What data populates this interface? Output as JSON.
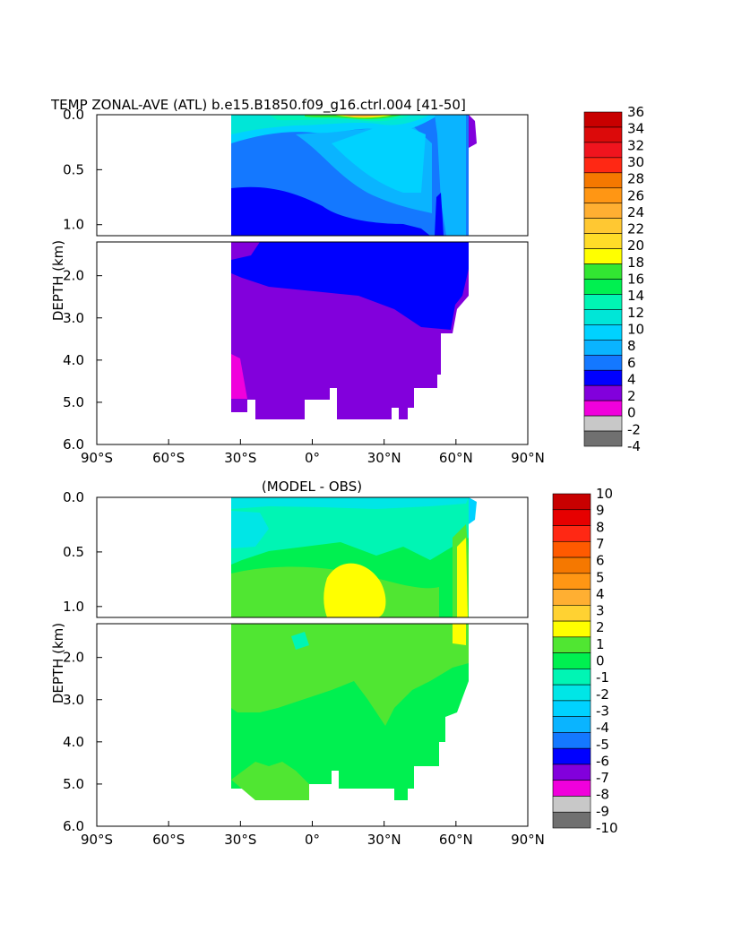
{
  "chart_data": [
    {
      "type": "heatmap",
      "title": "TEMP ZONAL-AVE (ATL) b.e15.B1850.f09_g16.ctrl.004 [41-50]",
      "ylabel": "DEPTH (km)",
      "xlabel": "",
      "x_ticks": [
        "90°S",
        "60°S",
        "30°S",
        "0°",
        "30°N",
        "60°N",
        "90°N"
      ],
      "y_ticks_upper": [
        "0.0",
        "0.5",
        "1.0"
      ],
      "y_ticks_lower": [
        "2.0",
        "3.0",
        "4.0",
        "5.0",
        "6.0"
      ],
      "xlim": [
        -90,
        90
      ],
      "ylim_upper_km": [
        0.0,
        1.1
      ],
      "ylim_lower_km": [
        1.2,
        6.0
      ],
      "colorbar_labels": [
        "36",
        "34",
        "32",
        "30",
        "28",
        "26",
        "24",
        "22",
        "20",
        "18",
        "16",
        "14",
        "12",
        "10",
        "8",
        "6",
        "4",
        "2",
        "0",
        "-2",
        "-4"
      ],
      "colorbar_colors": [
        "#c80000",
        "#dc0a0a",
        "#f0141e",
        "#ff2814",
        "#f57800",
        "#ff9614",
        "#ffaf32",
        "#ffc832",
        "#ffdc28",
        "#ffff00",
        "#32e632",
        "#00f050",
        "#00f5b4",
        "#00e6d7",
        "#00d2ff",
        "#0ab4ff",
        "#1478ff",
        "#0000ff",
        "#8200dc",
        "#f000dc",
        "#c8c8c8",
        "#707070"
      ]
    },
    {
      "type": "heatmap",
      "title": "(MODEL - OBS)",
      "ylabel": "DEPTH (km)",
      "xlabel": "",
      "x_ticks": [
        "90°S",
        "60°S",
        "30°S",
        "0°",
        "30°N",
        "60°N",
        "90°N"
      ],
      "y_ticks_upper": [
        "0.0",
        "0.5",
        "1.0"
      ],
      "y_ticks_lower": [
        "2.0",
        "3.0",
        "4.0",
        "5.0",
        "6.0"
      ],
      "xlim": [
        -90,
        90
      ],
      "ylim_upper_km": [
        0.0,
        1.1
      ],
      "ylim_lower_km": [
        1.2,
        6.0
      ],
      "colorbar_labels": [
        "10",
        "9",
        "8",
        "7",
        "6",
        "5",
        "4",
        "3",
        "2",
        "1",
        "0",
        "-1",
        "-2",
        "-3",
        "-4",
        "-5",
        "-6",
        "-7",
        "-8",
        "-9",
        "-10"
      ],
      "colorbar_colors": [
        "#c80000",
        "#e60000",
        "#ff2814",
        "#ff5a00",
        "#f57800",
        "#ff9614",
        "#ffaf32",
        "#ffd232",
        "#ffff00",
        "#50e632",
        "#00f050",
        "#00f5b4",
        "#00e6e6",
        "#00d2ff",
        "#0ab4ff",
        "#1478ff",
        "#0000ff",
        "#8200dc",
        "#f000dc",
        "#c8c8c8",
        "#707070"
      ]
    }
  ]
}
